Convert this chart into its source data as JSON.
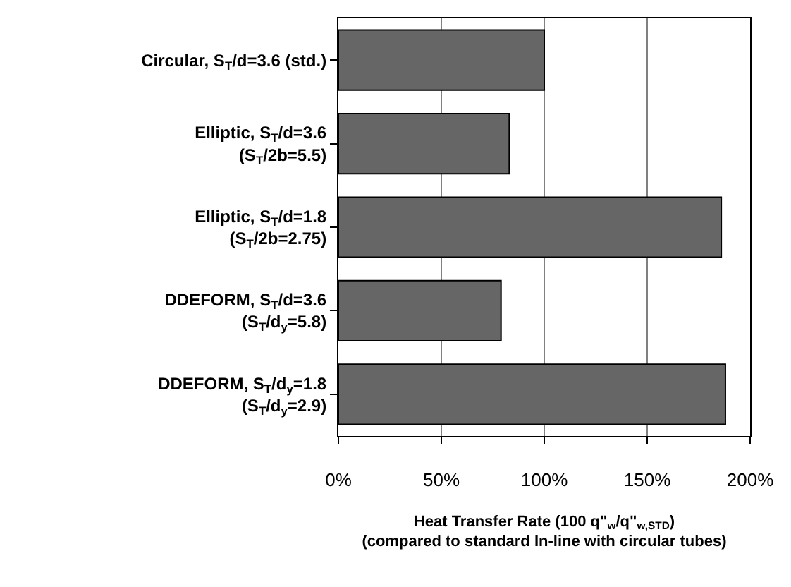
{
  "chart_data": {
    "type": "bar",
    "orientation": "horizontal",
    "categories": [
      "Circular, S$_{T}$/d=3.6 (std.)",
      "Elliptic, S$_{T}$/d=3.6\n(S$_{T}$/2b=5.5)",
      "Elliptic, S$_{T}$/d=1.8\n(S$_{T}$/2b=2.75)",
      "DDEFORM, S$_{T}$/d=3.6\n(S$_{T}$/d$_{y}$=5.8)",
      "DDEFORM, S$_{T}$/d$_{y}$=1.8\n(S$_{T}$/d$_{y}$=2.9)"
    ],
    "series": [
      {
        "color": "#666666",
        "values": [
          100,
          83,
          186,
          79,
          188
        ]
      }
    ],
    "xlabel": "Heat Transfer Rate (100 q\"$_{w}$/q\"$_{w,STD}$)\n(compared to standard In-line with circular tubes)",
    "xlim": [
      0,
      200
    ],
    "xticks": [
      {
        "value": 0,
        "label": "0%"
      },
      {
        "value": 50,
        "label": "50%"
      },
      {
        "value": 100,
        "label": "100%"
      },
      {
        "value": 150,
        "label": "150%"
      },
      {
        "value": 200,
        "label": "200%"
      }
    ],
    "grid": "x",
    "legend": false
  }
}
